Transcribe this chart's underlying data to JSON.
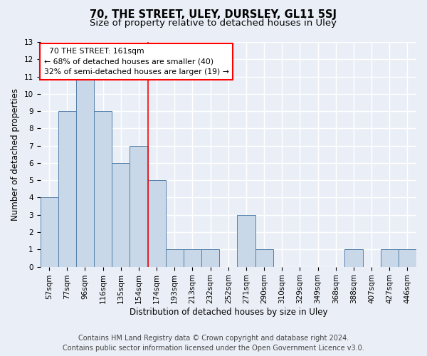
{
  "title": "70, THE STREET, ULEY, DURSLEY, GL11 5SJ",
  "subtitle": "Size of property relative to detached houses in Uley",
  "xlabel": "Distribution of detached houses by size in Uley",
  "ylabel": "Number of detached properties",
  "categories": [
    "57sqm",
    "77sqm",
    "96sqm",
    "116sqm",
    "135sqm",
    "154sqm",
    "174sqm",
    "193sqm",
    "213sqm",
    "232sqm",
    "252sqm",
    "271sqm",
    "290sqm",
    "310sqm",
    "329sqm",
    "349sqm",
    "368sqm",
    "388sqm",
    "407sqm",
    "427sqm",
    "446sqm"
  ],
  "values": [
    4,
    9,
    11,
    9,
    6,
    7,
    5,
    1,
    1,
    1,
    0,
    3,
    1,
    0,
    0,
    0,
    0,
    1,
    0,
    1,
    1
  ],
  "bar_color": "#c8d8e8",
  "bar_edge_color": "#5580aa",
  "ylim": [
    0,
    13
  ],
  "yticks": [
    0,
    1,
    2,
    3,
    4,
    5,
    6,
    7,
    8,
    9,
    10,
    11,
    12,
    13
  ],
  "property_label": "70 THE STREET: 161sqm",
  "pct_smaller": "68% of detached houses are smaller (40)",
  "pct_larger": "32% of semi-detached houses are larger (19)",
  "vline_index": 5.5,
  "footer_line1": "Contains HM Land Registry data © Crown copyright and database right 2024.",
  "footer_line2": "Contains public sector information licensed under the Open Government Licence v3.0.",
  "background_color": "#eaeff7",
  "plot_background_color": "#eaeff7",
  "grid_color": "#ffffff",
  "title_fontsize": 10.5,
  "subtitle_fontsize": 9.5,
  "axis_label_fontsize": 8.5,
  "tick_fontsize": 7.5,
  "footer_fontsize": 7.0
}
